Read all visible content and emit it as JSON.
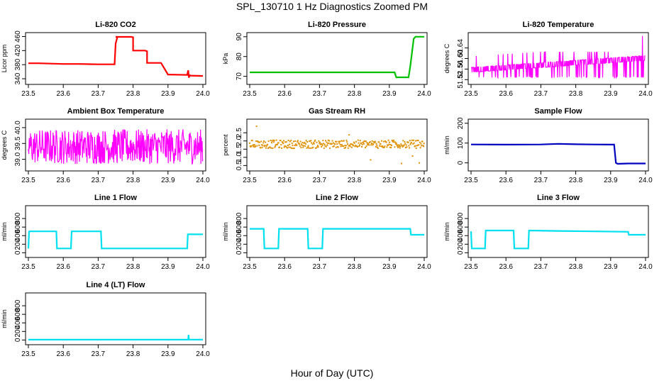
{
  "figure": {
    "title": "SPL_130710  1 Hz Diagnostics Zoomed PM",
    "xlabel": "Hour of Day (UTC)"
  },
  "chart_data": [
    {
      "type": "line",
      "title": "Li-820 CO2",
      "ylabel": "Licor ppm",
      "xlim": [
        23.5,
        24.0
      ],
      "ylim": [
        330,
        465
      ],
      "xticks": [
        "23.5",
        "23.6",
        "23.7",
        "23.8",
        "23.9",
        "24.0"
      ],
      "yticks": [
        340,
        380,
        420,
        460
      ],
      "ytick_labels": [
        "340",
        "380",
        "420",
        "460"
      ],
      "color": "#ff0000",
      "series": [
        {
          "x": [
            23.5,
            23.53,
            23.6,
            23.65,
            23.7,
            23.747,
            23.75,
            23.755,
            23.75,
            23.765,
            23.795,
            23.8,
            23.8,
            23.835,
            23.84,
            23.84,
            23.88,
            23.9,
            23.955,
            23.958,
            23.96,
            23.962,
            23.965,
            24.0
          ],
          "y": [
            384,
            384,
            382,
            382,
            381,
            381,
            440,
            459,
            459,
            459,
            459,
            458,
            420,
            420,
            418,
            385,
            385,
            352,
            351,
            364,
            343,
            350,
            349,
            348
          ]
        }
      ]
    },
    {
      "type": "line",
      "title": "Li-820 Pressure",
      "ylabel": "kPa",
      "xlim": [
        23.5,
        24.0
      ],
      "ylim": [
        67,
        91
      ],
      "xticks": [
        "23.5",
        "23.6",
        "23.7",
        "23.8",
        "23.9",
        "24.0"
      ],
      "yticks": [
        70,
        80,
        90
      ],
      "ytick_labels": [
        "70",
        "80",
        "90"
      ],
      "color": "#00c000",
      "series": [
        {
          "x": [
            23.5,
            23.6,
            23.7,
            23.8,
            23.9,
            23.915,
            23.92,
            23.955,
            23.96,
            23.97,
            23.975,
            24.0
          ],
          "y": [
            72,
            72,
            72,
            72,
            72,
            72,
            69.5,
            69.5,
            75,
            89,
            90,
            90
          ]
        }
      ]
    },
    {
      "type": "line",
      "title": "Li-820 Temperature",
      "ylabel": "degrees C",
      "xlim": [
        23.5,
        24.0
      ],
      "ylim": [
        51.51,
        51.69
      ],
      "xticks": [
        "23.5",
        "23.6",
        "23.7",
        "23.8",
        "23.9",
        "24.0"
      ],
      "yticks": [
        51.52,
        51.56,
        51.6,
        51.64
      ],
      "ytick_labels": [
        "51.52",
        "51.56",
        "51.60",
        "51.64"
      ],
      "color": "#ff00ff",
      "noise": {
        "start": 23.5,
        "end": 24.0,
        "step": 0.001,
        "base_x": [
          23.5,
          24.0
        ],
        "base_y": [
          51.548,
          51.593
        ],
        "low": 51.527,
        "high": 51.605,
        "top": 51.685
      }
    },
    {
      "type": "line",
      "title": "Ambient Box Temperature",
      "ylabel": "degrees C",
      "xlim": [
        23.5,
        24.0
      ],
      "ylim": [
        38.7,
        40.2
      ],
      "xticks": [
        "23.5",
        "23.6",
        "23.7",
        "23.8",
        "23.9",
        "24.0"
      ],
      "yticks": [
        39,
        39.5,
        40
      ],
      "ytick_labels": [
        "39.0",
        "39.5",
        "40.0"
      ],
      "color": "#ff00ff",
      "noise": {
        "start": 23.5,
        "end": 24.0,
        "step": 0.0012,
        "center": 39.4,
        "spread": 0.55,
        "min": 38.8,
        "max": 40.13
      }
    },
    {
      "type": "scatter",
      "title": "Gas Stream RH",
      "ylabel": "percent",
      "xlim": [
        23.5,
        24.0
      ],
      "ylim": [
        0.3,
        3.2
      ],
      "xticks": [
        "23.5",
        "23.6",
        "23.7",
        "23.8",
        "23.9",
        "24.0"
      ],
      "yticks": [
        0.5,
        1,
        1.5,
        2,
        2.5
      ],
      "ytick_labels": [
        "0.5",
        "1.0",
        "1.5",
        "2.0",
        "2.5"
      ],
      "color": "#e09000",
      "noise": {
        "start": 23.5,
        "end": 24.0,
        "step": 0.0015,
        "center": 1.8,
        "spread": 0.25,
        "min": 0.45,
        "max": 3.0
      }
    },
    {
      "type": "line",
      "title": "Sample Flow",
      "ylabel": "ml/min",
      "xlim": [
        23.5,
        24.0
      ],
      "ylim": [
        -30,
        210
      ],
      "xticks": [
        "23.5",
        "23.6",
        "23.7",
        "23.8",
        "23.9",
        "24.0"
      ],
      "yticks": [
        0,
        100,
        200
      ],
      "ytick_labels": [
        "0",
        "100",
        "200"
      ],
      "color": "#0000c0",
      "series": [
        {
          "x": [
            23.5,
            23.6,
            23.7,
            23.75,
            23.8,
            23.85,
            23.91,
            23.915,
            23.92,
            23.95,
            24.0
          ],
          "y": [
            93,
            92,
            93,
            96,
            94,
            93,
            92,
            0,
            -5,
            -3,
            -3
          ]
        }
      ]
    },
    {
      "type": "line",
      "title": "Line 1 Flow",
      "ylabel": "ml/min",
      "xlim": [
        23.5,
        24.0
      ],
      "ylim": [
        -60,
        1050
      ],
      "xticks": [
        "23.5",
        "23.6",
        "23.7",
        "23.8",
        "23.9",
        "24.0"
      ],
      "yticks": [
        0,
        200,
        400,
        600,
        800
      ],
      "ytick_labels": [
        "0",
        "200",
        "400",
        "600",
        "800"
      ],
      "color": "#00e0f0",
      "series": [
        {
          "x": [
            23.5,
            23.502,
            23.58,
            23.582,
            23.622,
            23.624,
            23.708,
            23.71,
            23.955,
            23.957,
            24.0
          ],
          "y": [
            100,
            500,
            500,
            100,
            100,
            500,
            500,
            100,
            100,
            430,
            430
          ]
        }
      ]
    },
    {
      "type": "line",
      "title": "Line 2 Flow",
      "ylabel": "ml/min",
      "xlim": [
        23.5,
        24.0
      ],
      "ylim": [
        -60,
        1050
      ],
      "xticks": [
        "23.5",
        "23.6",
        "23.7",
        "23.8",
        "23.9",
        "24.0"
      ],
      "yticks": [
        0,
        200,
        400,
        600,
        800
      ],
      "ytick_labels": [
        "0",
        "200",
        "400",
        "600",
        "800"
      ],
      "color": "#00e0f0",
      "series": [
        {
          "x": [
            23.5,
            23.54,
            23.542,
            23.582,
            23.584,
            23.666,
            23.668,
            23.708,
            23.71,
            23.96,
            23.962,
            24.0
          ],
          "y": [
            560,
            560,
            100,
            100,
            560,
            560,
            100,
            100,
            560,
            560,
            420,
            420
          ]
        }
      ]
    },
    {
      "type": "line",
      "title": "Line 3 Flow",
      "ylabel": "ml/min",
      "xlim": [
        23.5,
        24.0
      ],
      "ylim": [
        -60,
        1050
      ],
      "xticks": [
        "23.5",
        "23.6",
        "23.7",
        "23.8",
        "23.9",
        "24.0"
      ],
      "yticks": [
        0,
        200,
        400,
        600,
        800
      ],
      "ytick_labels": [
        "0",
        "200",
        "400",
        "600",
        "800"
      ],
      "color": "#00e0f0",
      "series": [
        {
          "x": [
            23.5,
            23.502,
            23.54,
            23.542,
            23.622,
            23.624,
            23.664,
            23.666,
            23.75,
            23.85,
            23.95,
            23.952,
            24.0
          ],
          "y": [
            500,
            100,
            100,
            520,
            520,
            100,
            100,
            520,
            510,
            500,
            490,
            420,
            420
          ]
        }
      ]
    },
    {
      "type": "line",
      "title": "Line 4 (LT) Flow",
      "ylabel": "ml/min",
      "xlim": [
        23.5,
        24.0
      ],
      "ylim": [
        -60,
        1050
      ],
      "xticks": [
        "23.5",
        "23.6",
        "23.7",
        "23.8",
        "23.9",
        "24.0"
      ],
      "yticks": [
        0,
        200,
        400,
        600,
        800
      ],
      "ytick_labels": [
        "0",
        "200",
        "400",
        "600",
        "800"
      ],
      "color": "#00e0f0",
      "series": [
        {
          "x": [
            23.5,
            23.6,
            23.7,
            23.8,
            23.9,
            23.958,
            23.959,
            23.96,
            23.961,
            24.0
          ],
          "y": [
            8,
            8,
            8,
            8,
            8,
            8,
            120,
            8,
            8,
            8
          ]
        }
      ]
    }
  ]
}
